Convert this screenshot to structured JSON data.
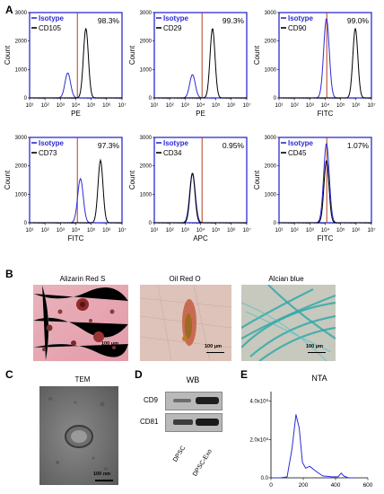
{
  "panels": {
    "A": "A",
    "B": "B",
    "C": "C",
    "D": "D",
    "E": "E"
  },
  "flow": {
    "ylabel": "Count",
    "legend_isotype": "Isotype",
    "colors": {
      "isotype": "#2b2bd6",
      "marker": "#000000",
      "gate": "#b04020",
      "frame": "#1a1acc"
    },
    "x_ticks": [
      "10¹",
      "10²",
      "10³",
      "10⁴",
      "10⁵",
      "10⁶",
      "10⁷"
    ],
    "y_ticks": [
      "0",
      "1000",
      "2000",
      "3000"
    ]
  },
  "chart_data": [
    {
      "type": "line",
      "title": "",
      "marker": "CD105",
      "xlabel": "PE",
      "ylabel": "Count",
      "percent": "98.3%",
      "x_scale": "log",
      "xlim": [
        10,
        10000000
      ],
      "ylim": [
        0,
        3000
      ],
      "series": [
        {
          "name": "Isotype",
          "peak_x": 3000,
          "peak_y": 880
        },
        {
          "name": "CD105",
          "peak_x": 45000,
          "peak_y": 2450
        }
      ]
    },
    {
      "type": "line",
      "title": "",
      "marker": "CD29",
      "xlabel": "PE",
      "ylabel": "Count",
      "percent": "99.3%",
      "x_scale": "log",
      "xlim": [
        10,
        10000000
      ],
      "ylim": [
        0,
        3000
      ],
      "series": [
        {
          "name": "Isotype",
          "peak_x": 3000,
          "peak_y": 820
        },
        {
          "name": "CD29",
          "peak_x": 60000,
          "peak_y": 2450
        }
      ]
    },
    {
      "type": "line",
      "title": "",
      "marker": "CD90",
      "xlabel": "FITC",
      "ylabel": "Count",
      "percent": "99.0%",
      "x_scale": "log",
      "xlim": [
        10,
        10000000
      ],
      "ylim": [
        0,
        3000
      ],
      "series": [
        {
          "name": "Isotype",
          "peak_x": 12000,
          "peak_y": 2800
        },
        {
          "name": "CD90",
          "peak_x": 900000,
          "peak_y": 2450
        }
      ]
    },
    {
      "type": "line",
      "title": "",
      "marker": "CD73",
      "xlabel": "FITC",
      "ylabel": "Count",
      "percent": "97.3%",
      "x_scale": "log",
      "xlim": [
        10,
        10000000
      ],
      "ylim": [
        0,
        3000
      ],
      "series": [
        {
          "name": "Isotype",
          "peak_x": 20000,
          "peak_y": 1550
        },
        {
          "name": "CD73",
          "peak_x": 400000,
          "peak_y": 2200
        }
      ]
    },
    {
      "type": "line",
      "title": "",
      "marker": "CD34",
      "xlabel": "APC",
      "ylabel": "Count",
      "percent": "0.95%",
      "x_scale": "log",
      "xlim": [
        10,
        10000000
      ],
      "ylim": [
        0,
        3000
      ],
      "series": [
        {
          "name": "Isotype",
          "peak_x": 3000,
          "peak_y": 1750
        },
        {
          "name": "CD34",
          "peak_x": 3000,
          "peak_y": 1750
        }
      ]
    },
    {
      "type": "line",
      "title": "",
      "marker": "CD45",
      "xlabel": "FITC",
      "ylabel": "Count",
      "percent": "1.07%",
      "x_scale": "log",
      "xlim": [
        10,
        10000000
      ],
      "ylim": [
        0,
        3000
      ],
      "series": [
        {
          "name": "Isotype",
          "peak_x": 12000,
          "peak_y": 2800
        },
        {
          "name": "CD45",
          "peak_x": 12000,
          "peak_y": 2200
        }
      ]
    },
    {
      "type": "line",
      "title": "NTA",
      "xlabel": "",
      "ylabel": "",
      "x_ticks": [
        "0",
        "200",
        "400",
        "600"
      ],
      "y_ticks": [
        "0.0",
        "2.0x10⁸",
        "4.0x10⁸"
      ],
      "xlim": [
        0,
        600
      ],
      "ylim": [
        0,
        450000000
      ],
      "series": [
        {
          "name": "",
          "points": [
            [
              10,
              0
            ],
            [
              60,
              0
            ],
            [
              100,
              5000000.0
            ],
            [
              130,
              150000000.0
            ],
            [
              155,
              330000000.0
            ],
            [
              175,
              260000000.0
            ],
            [
              195,
              80000000.0
            ],
            [
              215,
              50000000.0
            ],
            [
              240,
              60000000.0
            ],
            [
              270,
              40000000.0
            ],
            [
              320,
              10000000.0
            ],
            [
              380,
              5000000.0
            ],
            [
              415,
              5000000.0
            ],
            [
              435,
              25000000.0
            ],
            [
              450,
              10000000.0
            ],
            [
              480,
              0
            ],
            [
              520,
              0
            ]
          ]
        }
      ],
      "color": "#2b2bd6"
    }
  ],
  "micrographs": {
    "alizarin": {
      "caption": "Alizarin Red S",
      "scale": "100 μm"
    },
    "oil": {
      "caption": "Oil Red O",
      "scale": "100 μm"
    },
    "alcian": {
      "caption": "Alcian blue",
      "scale": "100 μm"
    },
    "tem": {
      "caption": "TEM",
      "scale": "100 nm"
    }
  },
  "wb": {
    "title": "WB",
    "rows": [
      "CD9",
      "CD81"
    ],
    "lanes": [
      "DPSC",
      "DPSC-Exo"
    ]
  }
}
